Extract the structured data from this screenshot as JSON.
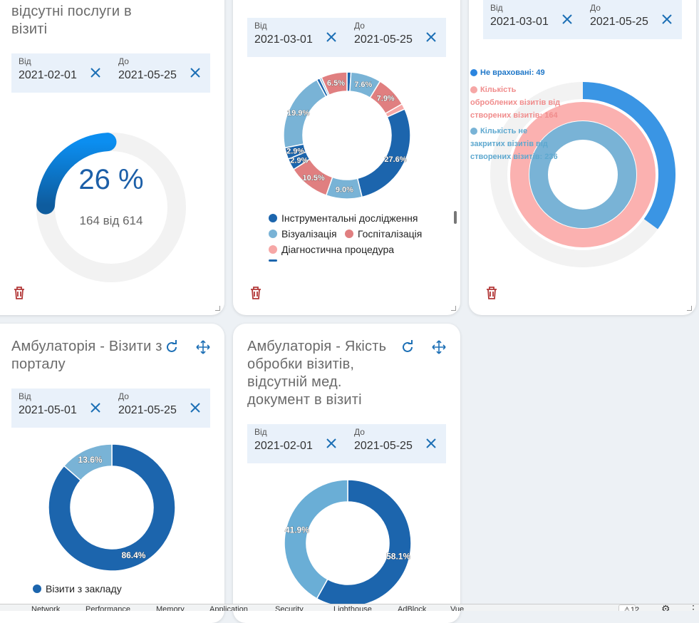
{
  "cards": {
    "c1": {
      "title_line1": "відсутні послуги в",
      "title_line2": "візиті",
      "date_from_label": "Від",
      "date_from": "2021-02-01",
      "date_to_label": "До",
      "date_to": "2021-05-25",
      "gauge_value": "26 %",
      "gauge_sub": "164 від 614",
      "gauge_fraction": 0.26
    },
    "c2": {
      "date_from_label": "Від",
      "date_from": "2021-03-01",
      "date_to_label": "До",
      "date_to": "2021-05-25",
      "legend": [
        "Інструментальні дослідження",
        "Візуалізація",
        "Госпіталізація",
        "Діагностична процедура"
      ]
    },
    "c3": {
      "date_from_label": "Від",
      "date_from": "2021-03-01",
      "date_to_label": "До",
      "date_to": "2021-05-25",
      "legend": [
        {
          "line1": "Не враховані: 49",
          "line2": "",
          "line3": ""
        },
        {
          "line1": "Кількість",
          "line2": "оброблених візитів від",
          "line3": "створених візитів: 164"
        },
        {
          "line1": "Кількість не",
          "line2": "закритих візитів від",
          "line3": "створених візитів: 236"
        }
      ]
    },
    "c4": {
      "title_line1": "Амбулаторія - Візити з",
      "title_line2": "порталу",
      "date_from_label": "Від",
      "date_from": "2021-05-01",
      "date_to_label": "До",
      "date_to": "2021-05-25",
      "legend": [
        "Візити з закладу"
      ]
    },
    "c5": {
      "title_line1": "Амбулаторія - Якість",
      "title_line2": "обробки візитів,",
      "title_line3": "відсутній мед.",
      "title_line4": "документ в візиті",
      "date_from_label": "Від",
      "date_from": "2021-02-01",
      "date_to_label": "До",
      "date_to": "2021-05-25"
    }
  },
  "colors": {
    "dark_blue": "#1c65ad",
    "light_blue": "#79b3d6",
    "salmon": "#e07f80",
    "pink": "#f6a7a6",
    "bright_blue": "#3a95e4",
    "gauge_grey": "#f2f2f2"
  },
  "devtools": {
    "tabs": [
      "Network",
      "Performance",
      "Memory",
      "Application",
      "Security",
      "Lighthouse",
      "AdBlock",
      "Vue"
    ],
    "warnings": "12"
  },
  "chart_data": [
    {
      "type": "pie",
      "categories": [
        "Інструментальні дослідження",
        "Візуалізація",
        "Госпіталізація",
        "Діагностична процедура",
        "Інструментальні дослідження",
        "Візуалізація",
        "Госпіталізація",
        "Інструментальні дослідження",
        "Інструментальні дослідження",
        "Візуалізація",
        "Інструментальні дослідження",
        "Візуалізація",
        "Госпіталізація"
      ],
      "values": [
        1.0,
        7.6,
        7.9,
        1.4,
        27.6,
        9.0,
        10.5,
        2.9,
        2.9,
        19.9,
        0.8,
        0.5,
        6.5
      ],
      "labels": [
        "",
        "7.6%",
        "7.9%",
        "",
        "27.6%",
        "9.0%",
        "10.5%",
        "2.9%",
        "2.9%",
        "19.9%",
        "",
        "",
        "6.5%"
      ],
      "colors": [
        "#1c65ad",
        "#79b3d6",
        "#e07f80",
        "#f6a7a6",
        "#1c65ad",
        "#79b3d6",
        "#e07f80",
        "#1c65ad",
        "#1c65ad",
        "#79b3d6",
        "#1c65ad",
        "#79b3d6",
        "#e07f80"
      ]
    },
    {
      "type": "pie",
      "categories": [
        "Не враховані",
        "Кількість оброблених візитів від створених візитів",
        "Кількість не закритих візитів від створених візитів"
      ],
      "values": [
        49,
        164,
        236
      ],
      "max": 614
    },
    {
      "type": "pie",
      "categories": [
        "Візити з закладу",
        ""
      ],
      "values": [
        86.4,
        13.6
      ],
      "labels": [
        "86.4%",
        "13.6%"
      ]
    },
    {
      "type": "pie",
      "categories": [
        "",
        ""
      ],
      "values": [
        58.1,
        41.9
      ],
      "labels": [
        "58.1%",
        "41.9%"
      ]
    }
  ]
}
